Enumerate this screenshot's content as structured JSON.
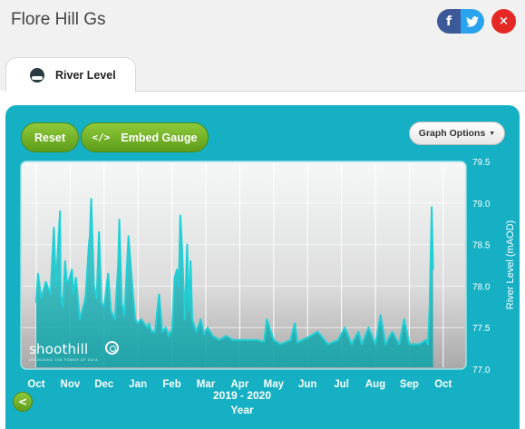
{
  "app": {
    "title": "Flore Hill Gs"
  },
  "share": {
    "facebook_icon": "f",
    "twitter_icon": "twitter-bird",
    "close_icon": "×"
  },
  "tabs": [
    {
      "label": "River Level",
      "icon": "river-level-icon"
    }
  ],
  "toolbar": {
    "reset_label": "Reset",
    "embed_label": "Embed Gauge",
    "embed_icon": "</>",
    "options_label": "Graph Options",
    "options_caret": "▼"
  },
  "logo": {
    "word": "shoothill",
    "tagline": "UNLOCKING THE POWER OF DATA"
  },
  "nav": {
    "back_icon": "<"
  },
  "colors": {
    "panel": "#15b0c4",
    "series": "#1ccbd0",
    "button_green": "#6fae24"
  },
  "chart_data": {
    "type": "area",
    "title": "",
    "xlabel": "Year",
    "xsublabel": "2019 - 2020",
    "ylabel": "River Level (mAOD)",
    "ylim": [
      77.0,
      79.5
    ],
    "yticks": [
      "79.5",
      "79.0",
      "78.5",
      "78.0",
      "77.5",
      "77.0"
    ],
    "xticks": [
      "Oct",
      "Nov",
      "Dec",
      "Jan",
      "Feb",
      "Mar",
      "Apr",
      "May",
      "Jun",
      "Jul",
      "Aug",
      "Sep",
      "Oct"
    ],
    "grid": true,
    "legend": "none",
    "series": [
      {
        "x": [
          0,
          0.05,
          0.15,
          0.28,
          0.42,
          0.52,
          0.58,
          0.7,
          0.72,
          0.78,
          0.85,
          0.9,
          0.95,
          1.05,
          1.1,
          1.17,
          1.28,
          1.35,
          1.42,
          1.46,
          1.55,
          1.58,
          1.62,
          1.7,
          1.78,
          1.85,
          1.92,
          2.0,
          2.12,
          2.2,
          2.32,
          2.42,
          2.45,
          2.52,
          2.6,
          2.72,
          2.85,
          2.92,
          2.98,
          3.1,
          3.18,
          3.28,
          3.32,
          3.4,
          3.5,
          3.62,
          3.72,
          3.82,
          3.9,
          3.95,
          4.0,
          4.08,
          4.15,
          4.2,
          4.25,
          4.3,
          4.38,
          4.45,
          4.5,
          4.55,
          4.6,
          4.72,
          4.85,
          4.95,
          5.05,
          5.2,
          5.4,
          5.6,
          5.8,
          6.0,
          6.2,
          6.5,
          6.72,
          6.8,
          7.0,
          7.2,
          7.5,
          7.62,
          7.7,
          8.0,
          8.3,
          8.6,
          8.9,
          9.1,
          9.3,
          9.5,
          9.6,
          9.8,
          10.0,
          10.15,
          10.3,
          10.5,
          10.7,
          10.85,
          11.0,
          11.3,
          11.5,
          11.55,
          11.6,
          11.66,
          11.7
        ],
        "y": [
          77.8,
          78.15,
          77.85,
          78.05,
          77.9,
          78.7,
          78.0,
          78.9,
          77.9,
          77.75,
          78.3,
          78.05,
          78.05,
          78.2,
          77.9,
          78.1,
          77.6,
          77.7,
          77.8,
          77.9,
          78.5,
          78.6,
          79.05,
          78.0,
          77.85,
          78.65,
          77.8,
          77.75,
          78.15,
          77.7,
          77.6,
          78.3,
          78.8,
          77.8,
          77.65,
          78.6,
          77.9,
          77.6,
          77.55,
          77.6,
          77.55,
          77.5,
          77.55,
          77.45,
          77.45,
          77.9,
          77.45,
          77.5,
          77.4,
          77.45,
          77.45,
          78.1,
          78.2,
          78.0,
          78.85,
          78.45,
          77.6,
          78.5,
          77.7,
          78.3,
          77.6,
          77.45,
          77.6,
          77.42,
          77.5,
          77.4,
          77.35,
          77.4,
          77.35,
          77.35,
          77.35,
          77.35,
          77.33,
          77.6,
          77.35,
          77.3,
          77.35,
          77.55,
          77.32,
          77.38,
          77.45,
          77.3,
          77.35,
          77.5,
          77.3,
          77.45,
          77.3,
          77.5,
          77.3,
          77.65,
          77.3,
          77.45,
          77.3,
          77.6,
          77.3,
          77.3,
          77.35,
          77.3,
          77.75,
          78.95,
          78.2
        ]
      }
    ]
  }
}
